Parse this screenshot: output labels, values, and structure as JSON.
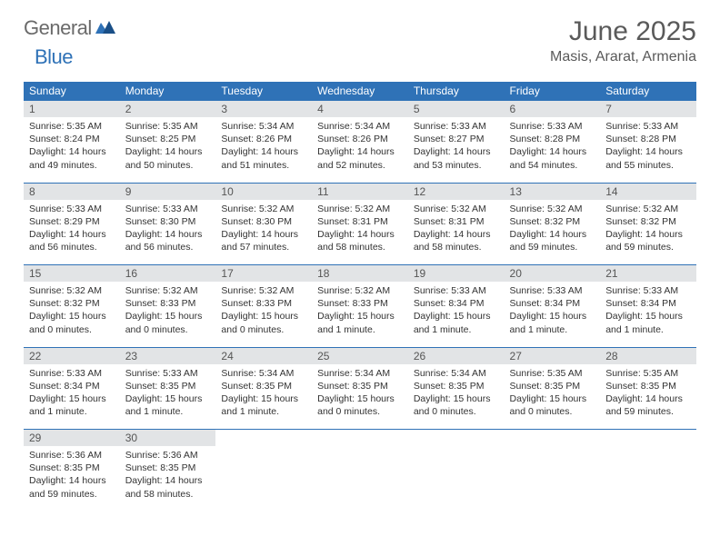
{
  "logo": {
    "text1": "General",
    "text2": "Blue"
  },
  "title": "June 2025",
  "location": "Masis, Ararat, Armenia",
  "colors": {
    "header_bg": "#2f72b7",
    "header_text": "#ffffff",
    "daynum_bg": "#e2e4e6",
    "border": "#2f72b7",
    "body_text": "#333333",
    "title_text": "#5a5a5a"
  },
  "calendar": {
    "type": "table",
    "columns": [
      "Sunday",
      "Monday",
      "Tuesday",
      "Wednesday",
      "Thursday",
      "Friday",
      "Saturday"
    ],
    "weeks": [
      [
        {
          "day": "1",
          "sunrise": "5:35 AM",
          "sunset": "8:24 PM",
          "daylight": "14 hours and 49 minutes."
        },
        {
          "day": "2",
          "sunrise": "5:35 AM",
          "sunset": "8:25 PM",
          "daylight": "14 hours and 50 minutes."
        },
        {
          "day": "3",
          "sunrise": "5:34 AM",
          "sunset": "8:26 PM",
          "daylight": "14 hours and 51 minutes."
        },
        {
          "day": "4",
          "sunrise": "5:34 AM",
          "sunset": "8:26 PM",
          "daylight": "14 hours and 52 minutes."
        },
        {
          "day": "5",
          "sunrise": "5:33 AM",
          "sunset": "8:27 PM",
          "daylight": "14 hours and 53 minutes."
        },
        {
          "day": "6",
          "sunrise": "5:33 AM",
          "sunset": "8:28 PM",
          "daylight": "14 hours and 54 minutes."
        },
        {
          "day": "7",
          "sunrise": "5:33 AM",
          "sunset": "8:28 PM",
          "daylight": "14 hours and 55 minutes."
        }
      ],
      [
        {
          "day": "8",
          "sunrise": "5:33 AM",
          "sunset": "8:29 PM",
          "daylight": "14 hours and 56 minutes."
        },
        {
          "day": "9",
          "sunrise": "5:33 AM",
          "sunset": "8:30 PM",
          "daylight": "14 hours and 56 minutes."
        },
        {
          "day": "10",
          "sunrise": "5:32 AM",
          "sunset": "8:30 PM",
          "daylight": "14 hours and 57 minutes."
        },
        {
          "day": "11",
          "sunrise": "5:32 AM",
          "sunset": "8:31 PM",
          "daylight": "14 hours and 58 minutes."
        },
        {
          "day": "12",
          "sunrise": "5:32 AM",
          "sunset": "8:31 PM",
          "daylight": "14 hours and 58 minutes."
        },
        {
          "day": "13",
          "sunrise": "5:32 AM",
          "sunset": "8:32 PM",
          "daylight": "14 hours and 59 minutes."
        },
        {
          "day": "14",
          "sunrise": "5:32 AM",
          "sunset": "8:32 PM",
          "daylight": "14 hours and 59 minutes."
        }
      ],
      [
        {
          "day": "15",
          "sunrise": "5:32 AM",
          "sunset": "8:32 PM",
          "daylight": "15 hours and 0 minutes."
        },
        {
          "day": "16",
          "sunrise": "5:32 AM",
          "sunset": "8:33 PM",
          "daylight": "15 hours and 0 minutes."
        },
        {
          "day": "17",
          "sunrise": "5:32 AM",
          "sunset": "8:33 PM",
          "daylight": "15 hours and 0 minutes."
        },
        {
          "day": "18",
          "sunrise": "5:32 AM",
          "sunset": "8:33 PM",
          "daylight": "15 hours and 1 minute."
        },
        {
          "day": "19",
          "sunrise": "5:33 AM",
          "sunset": "8:34 PM",
          "daylight": "15 hours and 1 minute."
        },
        {
          "day": "20",
          "sunrise": "5:33 AM",
          "sunset": "8:34 PM",
          "daylight": "15 hours and 1 minute."
        },
        {
          "day": "21",
          "sunrise": "5:33 AM",
          "sunset": "8:34 PM",
          "daylight": "15 hours and 1 minute."
        }
      ],
      [
        {
          "day": "22",
          "sunrise": "5:33 AM",
          "sunset": "8:34 PM",
          "daylight": "15 hours and 1 minute."
        },
        {
          "day": "23",
          "sunrise": "5:33 AM",
          "sunset": "8:35 PM",
          "daylight": "15 hours and 1 minute."
        },
        {
          "day": "24",
          "sunrise": "5:34 AM",
          "sunset": "8:35 PM",
          "daylight": "15 hours and 1 minute."
        },
        {
          "day": "25",
          "sunrise": "5:34 AM",
          "sunset": "8:35 PM",
          "daylight": "15 hours and 0 minutes."
        },
        {
          "day": "26",
          "sunrise": "5:34 AM",
          "sunset": "8:35 PM",
          "daylight": "15 hours and 0 minutes."
        },
        {
          "day": "27",
          "sunrise": "5:35 AM",
          "sunset": "8:35 PM",
          "daylight": "15 hours and 0 minutes."
        },
        {
          "day": "28",
          "sunrise": "5:35 AM",
          "sunset": "8:35 PM",
          "daylight": "14 hours and 59 minutes."
        }
      ],
      [
        {
          "day": "29",
          "sunrise": "5:36 AM",
          "sunset": "8:35 PM",
          "daylight": "14 hours and 59 minutes."
        },
        {
          "day": "30",
          "sunrise": "5:36 AM",
          "sunset": "8:35 PM",
          "daylight": "14 hours and 58 minutes."
        },
        null,
        null,
        null,
        null,
        null
      ]
    ],
    "labels": {
      "sunrise": "Sunrise:",
      "sunset": "Sunset:",
      "daylight": "Daylight:"
    }
  }
}
